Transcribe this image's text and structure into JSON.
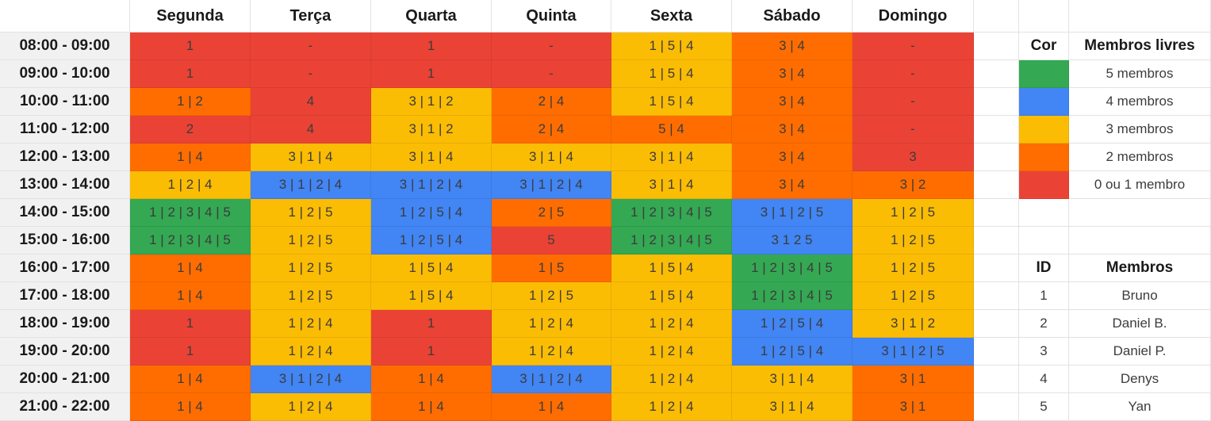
{
  "schedule": {
    "days": [
      "Segunda",
      "Terça",
      "Quarta",
      "Quinta",
      "Sexta",
      "Sábado",
      "Domingo"
    ],
    "rows": [
      {
        "time": "08:00 - 09:00",
        "cells": [
          [
            "1",
            1
          ],
          [
            "-",
            1
          ],
          [
            "1",
            1
          ],
          [
            "-",
            1
          ],
          [
            "1 | 5 | 4",
            3
          ],
          [
            "3 | 4",
            2
          ],
          [
            "-",
            1
          ]
        ]
      },
      {
        "time": "09:00 - 10:00",
        "cells": [
          [
            "1",
            1
          ],
          [
            "-",
            1
          ],
          [
            "1",
            1
          ],
          [
            "-",
            1
          ],
          [
            "1 | 5 | 4",
            3
          ],
          [
            "3 | 4",
            2
          ],
          [
            "-",
            1
          ]
        ]
      },
      {
        "time": "10:00 - 11:00",
        "cells": [
          [
            "1 | 2",
            2
          ],
          [
            "4",
            1
          ],
          [
            "3 | 1 | 2",
            3
          ],
          [
            "2 | 4",
            2
          ],
          [
            "1 | 5 | 4",
            3
          ],
          [
            "3 | 4",
            2
          ],
          [
            "-",
            1
          ]
        ]
      },
      {
        "time": "11:00 - 12:00",
        "cells": [
          [
            "2",
            1
          ],
          [
            "4",
            1
          ],
          [
            "3 | 1 | 2",
            3
          ],
          [
            "2 | 4",
            2
          ],
          [
            "5 | 4",
            2
          ],
          [
            "3 | 4",
            2
          ],
          [
            "-",
            1
          ]
        ]
      },
      {
        "time": "12:00 - 13:00",
        "cells": [
          [
            "1 | 4",
            2
          ],
          [
            "3 | 1 | 4",
            3
          ],
          [
            "3 | 1 | 4",
            3
          ],
          [
            "3 | 1 | 4",
            3
          ],
          [
            "3 | 1 | 4",
            3
          ],
          [
            "3 | 4",
            2
          ],
          [
            "3",
            1
          ]
        ]
      },
      {
        "time": "13:00 - 14:00",
        "cells": [
          [
            "1 | 2 | 4",
            3
          ],
          [
            "3 | 1 | 2 | 4",
            4
          ],
          [
            "3 | 1 | 2 | 4",
            4
          ],
          [
            "3 | 1 | 2 | 4",
            4
          ],
          [
            "3 | 1 | 4",
            3
          ],
          [
            "3 | 4",
            2
          ],
          [
            "3 | 2",
            2
          ]
        ]
      },
      {
        "time": "14:00 - 15:00",
        "cells": [
          [
            "1 | 2 | 3 | 4 | 5",
            5
          ],
          [
            "1 | 2 | 5",
            3
          ],
          [
            "1 | 2 | 5 | 4",
            4
          ],
          [
            "2 | 5",
            2
          ],
          [
            "1 | 2 | 3 | 4 | 5",
            5
          ],
          [
            "3 | 1 | 2 | 5",
            4
          ],
          [
            "1 | 2 | 5",
            3
          ]
        ]
      },
      {
        "time": "15:00 - 16:00",
        "cells": [
          [
            "1 | 2 | 3 | 4 | 5",
            5
          ],
          [
            "1 | 2 | 5",
            3
          ],
          [
            "1 | 2 | 5 | 4",
            4
          ],
          [
            "5",
            1
          ],
          [
            "1 | 2 | 3 | 4 | 5",
            5
          ],
          [
            "3 1 2 5",
            4
          ],
          [
            "1 | 2 | 5",
            3
          ]
        ]
      },
      {
        "time": "16:00 - 17:00",
        "cells": [
          [
            "1 | 4",
            2
          ],
          [
            "1 | 2 | 5",
            3
          ],
          [
            "1 | 5 | 4",
            3
          ],
          [
            "1 | 5",
            2
          ],
          [
            "1 | 5 | 4",
            3
          ],
          [
            "1 | 2 | 3 | 4 | 5",
            5
          ],
          [
            "1 | 2 | 5",
            3
          ]
        ]
      },
      {
        "time": "17:00 - 18:00",
        "cells": [
          [
            "1 | 4",
            2
          ],
          [
            "1 | 2 | 5",
            3
          ],
          [
            "1 | 5 | 4",
            3
          ],
          [
            "1 | 2 | 5",
            3
          ],
          [
            "1 | 5 | 4",
            3
          ],
          [
            "1 | 2 | 3 | 4 | 5",
            5
          ],
          [
            "1 | 2 | 5",
            3
          ]
        ]
      },
      {
        "time": "18:00 - 19:00",
        "cells": [
          [
            "1",
            1
          ],
          [
            "1 | 2 | 4",
            3
          ],
          [
            "1",
            1
          ],
          [
            "1 | 2 | 4",
            3
          ],
          [
            "1 | 2 | 4",
            3
          ],
          [
            "1 | 2 | 5 | 4",
            4
          ],
          [
            "3 | 1 | 2",
            3
          ]
        ]
      },
      {
        "time": "19:00 - 20:00",
        "cells": [
          [
            "1",
            1
          ],
          [
            "1 | 2 | 4",
            3
          ],
          [
            "1",
            1
          ],
          [
            "1 | 2 | 4",
            3
          ],
          [
            "1 | 2 | 4",
            3
          ],
          [
            "1 | 2 | 5 | 4",
            4
          ],
          [
            "3 | 1 | 2 | 5",
            4
          ]
        ]
      },
      {
        "time": "20:00 - 21:00",
        "cells": [
          [
            "1 | 4",
            2
          ],
          [
            "3 | 1 | 2 | 4",
            4
          ],
          [
            "1 | 4",
            2
          ],
          [
            "3 | 1 | 2 | 4",
            4
          ],
          [
            "1 | 2 | 4",
            3
          ],
          [
            "3 | 1 | 4",
            3
          ],
          [
            "3 | 1",
            2
          ]
        ]
      },
      {
        "time": "21:00 - 22:00",
        "cells": [
          [
            "1 | 4",
            2
          ],
          [
            "1 | 2 | 4",
            3
          ],
          [
            "1 | 4",
            2
          ],
          [
            "1 | 4",
            2
          ],
          [
            "1 | 2 | 4",
            3
          ],
          [
            "3 | 1 | 4",
            3
          ],
          [
            "3 | 1",
            2
          ]
        ]
      }
    ]
  },
  "legend": {
    "color_header": "Cor",
    "members_header": "Membros livres",
    "items": [
      {
        "level": 5,
        "label": "5 membros"
      },
      {
        "level": 4,
        "label": "4 membros"
      },
      {
        "level": 3,
        "label": "3 membros"
      },
      {
        "level": 2,
        "label": "2 membros"
      },
      {
        "level": 1,
        "label": "0 ou 1 membro"
      }
    ]
  },
  "members": {
    "id_header": "ID",
    "name_header": "Membros",
    "items": [
      {
        "id": "1",
        "name": "Bruno"
      },
      {
        "id": "2",
        "name": "Daniel B."
      },
      {
        "id": "3",
        "name": "Daniel P."
      },
      {
        "id": "4",
        "name": "Denys"
      },
      {
        "id": "5",
        "name": "Yan"
      }
    ]
  },
  "colors": {
    "five": "#34a853",
    "four": "#4285f4",
    "three": "#fbbc04",
    "two": "#ff6d01",
    "one": "#ea4335",
    "header_bg": "#f1f1f1"
  }
}
